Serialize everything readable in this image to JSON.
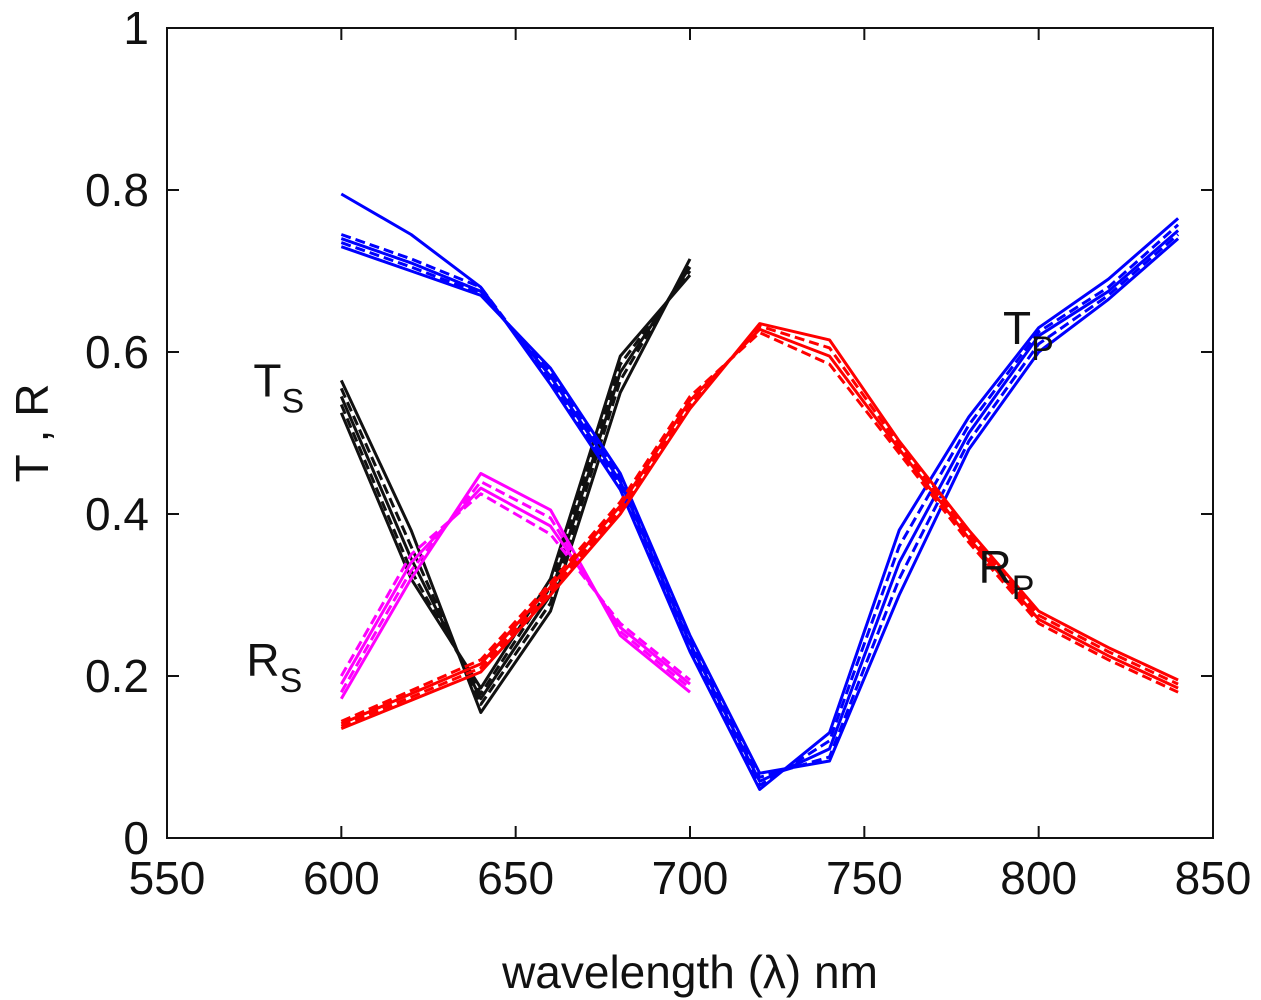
{
  "chart_data": {
    "type": "line",
    "title": "",
    "xlabel": "wavelength (λ) nm",
    "ylabel": "T , R",
    "xlim": [
      550,
      850
    ],
    "ylim": [
      0,
      1
    ],
    "xticks": [
      550,
      600,
      650,
      700,
      750,
      800,
      850
    ],
    "yticks": [
      0,
      0.2,
      0.4,
      0.6,
      0.8,
      1
    ],
    "xtick_labels": [
      "550",
      "600",
      "650",
      "700",
      "750",
      "800",
      "850"
    ],
    "ytick_labels": [
      "0",
      "0.2",
      "0.4",
      "0.6",
      "0.8",
      "1"
    ],
    "grid": false,
    "series": [
      {
        "name": "T_S",
        "color": "#111111",
        "lines": [
          {
            "x": [
              600,
              620,
              640,
              660,
              680,
              700
            ],
            "y": [
              0.565,
              0.38,
              0.155,
              0.28,
              0.55,
              0.715
            ]
          },
          {
            "x": [
              600,
              620,
              640,
              660,
              680,
              700
            ],
            "y": [
              0.555,
              0.36,
              0.165,
              0.29,
              0.565,
              0.71
            ]
          },
          {
            "x": [
              600,
              620,
              640,
              660,
              680,
              700
            ],
            "y": [
              0.545,
              0.345,
              0.172,
              0.3,
              0.575,
              0.705
            ]
          },
          {
            "x": [
              600,
              620,
              640,
              660,
              680,
              700
            ],
            "y": [
              0.535,
              0.33,
              0.178,
              0.31,
              0.585,
              0.7
            ]
          },
          {
            "x": [
              600,
              620,
              640,
              660,
              680,
              700
            ],
            "y": [
              0.525,
              0.32,
              0.185,
              0.32,
              0.595,
              0.695
            ]
          }
        ]
      },
      {
        "name": "R_S",
        "color": "#ff00ff",
        "lines": [
          {
            "x": [
              600,
              620,
              640,
              660,
              680,
              700
            ],
            "y": [
              0.172,
              0.32,
              0.45,
              0.405,
              0.25,
              0.18
            ]
          },
          {
            "x": [
              600,
              620,
              640,
              660,
              680,
              700
            ],
            "y": [
              0.18,
              0.33,
              0.44,
              0.395,
              0.255,
              0.185
            ]
          },
          {
            "x": [
              600,
              620,
              640,
              660,
              680,
              700
            ],
            "y": [
              0.19,
              0.34,
              0.432,
              0.385,
              0.26,
              0.19
            ]
          },
          {
            "x": [
              600,
              620,
              640,
              660,
              680,
              700
            ],
            "y": [
              0.2,
              0.35,
              0.425,
              0.375,
              0.265,
              0.195
            ]
          }
        ]
      },
      {
        "name": "T_P",
        "color": "#0000ff",
        "lines": [
          {
            "x": [
              600,
              620,
              640,
              660,
              680,
              700,
              720,
              740,
              760,
              780,
              800,
              820,
              840
            ],
            "y": [
              0.795,
              0.745,
              0.68,
              0.56,
              0.43,
              0.23,
              0.06,
              0.13,
              0.38,
              0.52,
              0.63,
              0.69,
              0.765
            ]
          },
          {
            "x": [
              600,
              620,
              640,
              660,
              680,
              700,
              720,
              740,
              760,
              780,
              800,
              820,
              840
            ],
            "y": [
              0.745,
              0.715,
              0.68,
              0.565,
              0.435,
              0.235,
              0.065,
              0.12,
              0.36,
              0.51,
              0.625,
              0.68,
              0.757
            ]
          },
          {
            "x": [
              600,
              620,
              640,
              660,
              680,
              700,
              720,
              740,
              760,
              780,
              800,
              820,
              840
            ],
            "y": [
              0.74,
              0.71,
              0.675,
              0.57,
              0.44,
              0.24,
              0.07,
              0.11,
              0.34,
              0.5,
              0.62,
              0.675,
              0.75
            ]
          },
          {
            "x": [
              600,
              620,
              640,
              660,
              680,
              700,
              720,
              740,
              760,
              780,
              800,
              820,
              840
            ],
            "y": [
              0.735,
              0.705,
              0.672,
              0.575,
              0.445,
              0.245,
              0.075,
              0.1,
              0.32,
              0.49,
              0.61,
              0.67,
              0.745
            ]
          },
          {
            "x": [
              600,
              620,
              640,
              660,
              680,
              700,
              720,
              740,
              760,
              780,
              800,
              820,
              840
            ],
            "y": [
              0.73,
              0.7,
              0.67,
              0.58,
              0.45,
              0.25,
              0.08,
              0.095,
              0.3,
              0.48,
              0.6,
              0.665,
              0.74
            ]
          }
        ]
      },
      {
        "name": "R_P",
        "color": "#ff0000",
        "lines": [
          {
            "x": [
              600,
              620,
              640,
              660,
              680,
              700,
              720,
              740,
              760,
              780,
              800,
              820,
              840
            ],
            "y": [
              0.135,
              0.17,
              0.205,
              0.3,
              0.4,
              0.53,
              0.635,
              0.615,
              0.49,
              0.38,
              0.28,
              0.235,
              0.195
            ]
          },
          {
            "x": [
              600,
              620,
              640,
              660,
              680,
              700,
              720,
              740,
              760,
              780,
              800,
              820,
              840
            ],
            "y": [
              0.138,
              0.174,
              0.21,
              0.305,
              0.405,
              0.535,
              0.632,
              0.605,
              0.485,
              0.375,
              0.275,
              0.23,
              0.19
            ]
          },
          {
            "x": [
              600,
              620,
              640,
              660,
              680,
              700,
              720,
              740,
              760,
              780,
              800,
              820,
              840
            ],
            "y": [
              0.141,
              0.178,
              0.215,
              0.31,
              0.41,
              0.54,
              0.628,
              0.595,
              0.48,
              0.37,
              0.27,
              0.225,
              0.185
            ]
          },
          {
            "x": [
              600,
              620,
              640,
              660,
              680,
              700,
              720,
              740,
              760,
              780,
              800,
              820,
              840
            ],
            "y": [
              0.144,
              0.182,
              0.22,
              0.315,
              0.415,
              0.545,
              0.624,
              0.585,
              0.475,
              0.365,
              0.265,
              0.22,
              0.18
            ]
          }
        ]
      }
    ],
    "annotations": [
      {
        "name": "ts-label",
        "main": "T",
        "sub": "S",
        "x": 600,
        "y": 0.545
      },
      {
        "name": "rs-label",
        "main": "R",
        "sub": "S",
        "x": 598,
        "y": 0.2
      },
      {
        "name": "tp-label",
        "main": "T",
        "sub": "P",
        "x": 815,
        "y": 0.61
      },
      {
        "name": "rp-label",
        "main": "R",
        "sub": "P",
        "x": 808,
        "y": 0.315
      }
    ]
  }
}
